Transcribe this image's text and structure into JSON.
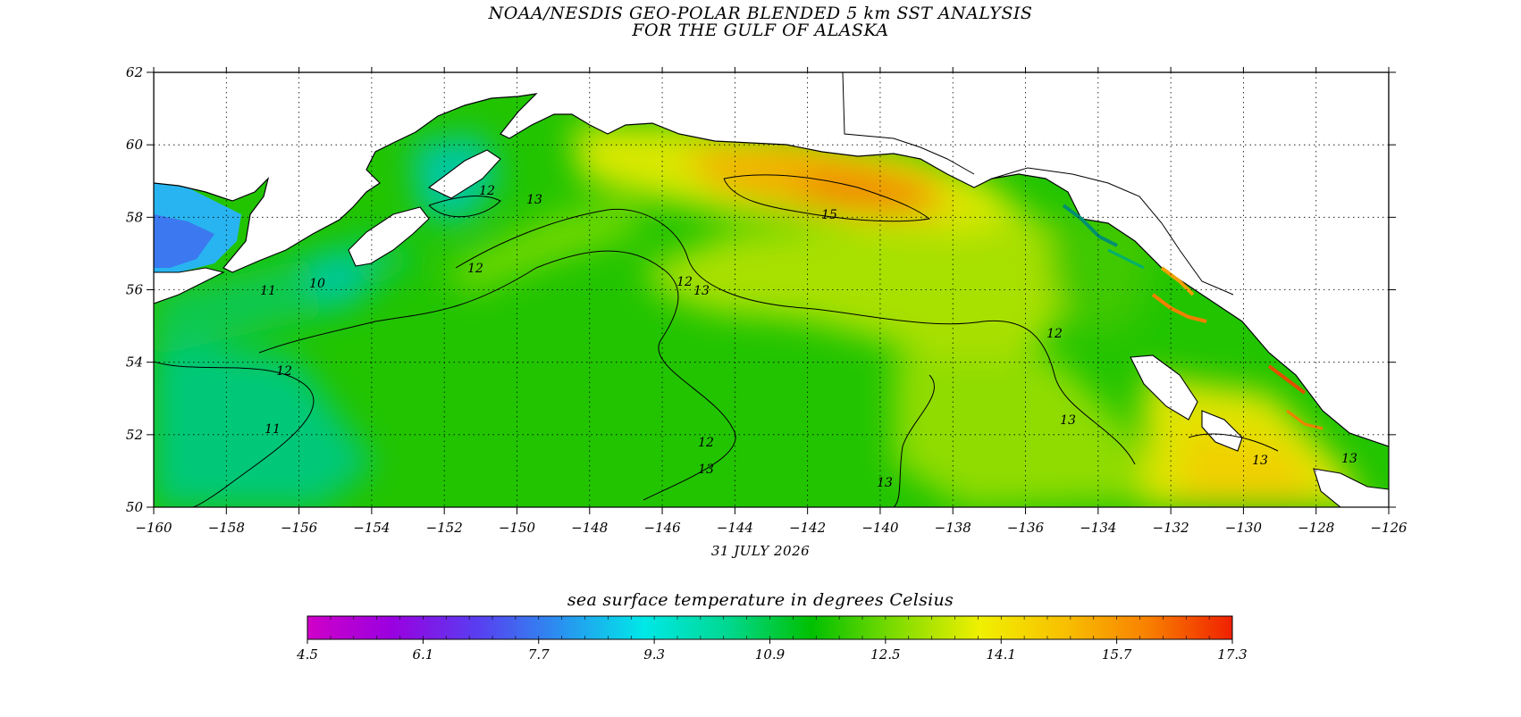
{
  "title": {
    "line1": "NOAA/NESDIS GEO-POLAR BLENDED 5 km SST ANALYSIS",
    "line2": "FOR THE GULF OF ALASKA"
  },
  "date_label": "31 JULY 2026",
  "colorbar": {
    "title": "sea surface temperature in degrees Celsius",
    "tick_labels": [
      "4.5",
      "6.1",
      "7.7",
      "9.3",
      "10.9",
      "12.5",
      "14.1",
      "15.7",
      "17.3"
    ],
    "min": 4.5,
    "max": 17.3,
    "colors": [
      "#d000c8",
      "#9a00e0",
      "#5a3cf0",
      "#2a90f0",
      "#00e8e8",
      "#00d890",
      "#00c000",
      "#80dc00",
      "#f0f000",
      "#f8c000",
      "#f88000",
      "#f02000"
    ]
  },
  "map": {
    "lon_range": [
      -160,
      -126
    ],
    "lat_range": [
      50,
      62
    ],
    "lon_ticks": [
      "-160",
      "-158",
      "-156",
      "-154",
      "-152",
      "-150",
      "-148",
      "-146",
      "-144",
      "-142",
      "-140",
      "-138",
      "-136",
      "-134",
      "-132",
      "-130",
      "-128",
      "-126"
    ],
    "lat_ticks": [
      "50",
      "52",
      "54",
      "56",
      "58",
      "60",
      "62"
    ],
    "contour_labels": [
      "11",
      "12",
      "13",
      "15",
      "12",
      "13",
      "12",
      "11",
      "12",
      "13",
      "13",
      "13",
      "12",
      "10",
      "13",
      "13",
      "12"
    ],
    "colors": {
      "land": "#ffffff",
      "cool_water": "#00c86e",
      "mid_water": "#1ec800",
      "warm_water": "#b4e600",
      "hot_water": "#f0c800",
      "hottest_water": "#f08c00",
      "cold_bay": "#28b4f0",
      "coldest_bay": "#3c78f0"
    }
  }
}
